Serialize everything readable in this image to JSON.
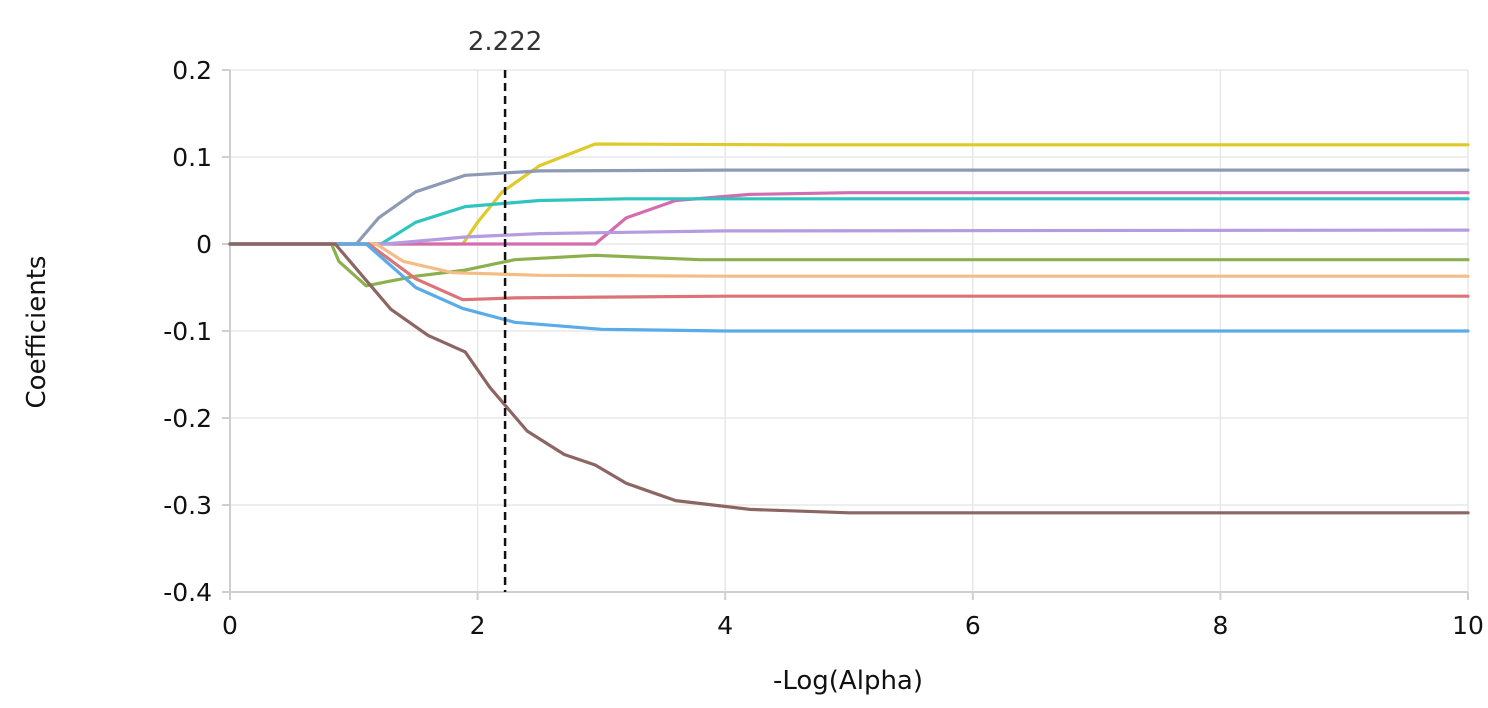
{
  "chart_data": {
    "type": "line",
    "xlabel": "-Log(Alpha)",
    "ylabel": "Coefficients",
    "xlim": [
      0,
      10
    ],
    "ylim": [
      -0.4,
      0.2
    ],
    "xticks": [
      0,
      2,
      4,
      6,
      8,
      10
    ],
    "xtick_labels": [
      "0",
      "2",
      "4",
      "6",
      "8",
      "10"
    ],
    "yticks": [
      0.2,
      0.1,
      0,
      -0.1,
      -0.2,
      -0.3,
      -0.4
    ],
    "ytick_labels": [
      "0.2",
      "0.1",
      "0",
      "-0.1",
      "-0.2",
      "-0.3",
      "-0.4"
    ],
    "grid": true,
    "legend": "none",
    "cutoff": {
      "x": 2.222,
      "label": "2.222",
      "color": "#111111"
    },
    "series": [
      {
        "color": "#e0c92a",
        "points": [
          [
            0,
            0
          ],
          [
            1.88,
            0
          ],
          [
            2.0,
            0.025
          ],
          [
            2.2,
            0.06
          ],
          [
            2.5,
            0.09
          ],
          [
            2.95,
            0.115
          ],
          [
            4.5,
            0.114
          ],
          [
            10,
            0.114
          ]
        ]
      },
      {
        "color": "#8e9ab5",
        "points": [
          [
            0,
            0
          ],
          [
            1.02,
            0
          ],
          [
            1.2,
            0.03
          ],
          [
            1.5,
            0.06
          ],
          [
            1.9,
            0.079
          ],
          [
            2.5,
            0.084
          ],
          [
            4,
            0.085
          ],
          [
            10,
            0.085
          ]
        ]
      },
      {
        "color": "#d46db0",
        "points": [
          [
            0,
            0
          ],
          [
            2.95,
            0
          ],
          [
            3.2,
            0.03
          ],
          [
            3.6,
            0.05
          ],
          [
            4.2,
            0.057
          ],
          [
            5,
            0.059
          ],
          [
            10,
            0.059
          ]
        ]
      },
      {
        "color": "#2fc4c0",
        "points": [
          [
            0,
            0
          ],
          [
            1.22,
            0
          ],
          [
            1.5,
            0.025
          ],
          [
            1.9,
            0.043
          ],
          [
            2.5,
            0.05
          ],
          [
            3.2,
            0.052
          ],
          [
            10,
            0.052
          ]
        ]
      },
      {
        "color": "#b59be0",
        "points": [
          [
            0,
            0
          ],
          [
            1.25,
            0
          ],
          [
            1.9,
            0.008
          ],
          [
            2.5,
            0.012
          ],
          [
            4,
            0.015
          ],
          [
            10,
            0.016
          ]
        ]
      },
      {
        "color": "#8cb04e",
        "points": [
          [
            0,
            0
          ],
          [
            0.82,
            0
          ],
          [
            0.88,
            -0.02
          ],
          [
            1.1,
            -0.048
          ],
          [
            1.5,
            -0.037
          ],
          [
            1.9,
            -0.03
          ],
          [
            2.3,
            -0.018
          ],
          [
            2.95,
            -0.013
          ],
          [
            3.8,
            -0.018
          ],
          [
            10,
            -0.018
          ]
        ]
      },
      {
        "color": "#f5bd86",
        "points": [
          [
            0,
            0
          ],
          [
            1.18,
            0
          ],
          [
            1.4,
            -0.02
          ],
          [
            1.8,
            -0.033
          ],
          [
            2.5,
            -0.036
          ],
          [
            4,
            -0.037
          ],
          [
            10,
            -0.037
          ]
        ]
      },
      {
        "color": "#dc7378",
        "points": [
          [
            0,
            0
          ],
          [
            1.12,
            0
          ],
          [
            1.5,
            -0.04
          ],
          [
            1.88,
            -0.064
          ],
          [
            2.3,
            -0.062
          ],
          [
            3,
            -0.061
          ],
          [
            4,
            -0.06
          ],
          [
            10,
            -0.06
          ]
        ]
      },
      {
        "color": "#5aace8",
        "points": [
          [
            0,
            0
          ],
          [
            1.1,
            0
          ],
          [
            1.5,
            -0.05
          ],
          [
            1.88,
            -0.074
          ],
          [
            2.3,
            -0.09
          ],
          [
            3,
            -0.098
          ],
          [
            4,
            -0.1
          ],
          [
            10,
            -0.1
          ]
        ]
      },
      {
        "color": "#8b6663",
        "points": [
          [
            0,
            0
          ],
          [
            0.85,
            0
          ],
          [
            1.0,
            -0.025
          ],
          [
            1.3,
            -0.075
          ],
          [
            1.6,
            -0.105
          ],
          [
            1.9,
            -0.124
          ],
          [
            2.1,
            -0.165
          ],
          [
            2.4,
            -0.215
          ],
          [
            2.7,
            -0.242
          ],
          [
            2.95,
            -0.254
          ],
          [
            3.2,
            -0.275
          ],
          [
            3.6,
            -0.295
          ],
          [
            4.2,
            -0.305
          ],
          [
            5,
            -0.309
          ],
          [
            10,
            -0.309
          ]
        ]
      }
    ]
  }
}
